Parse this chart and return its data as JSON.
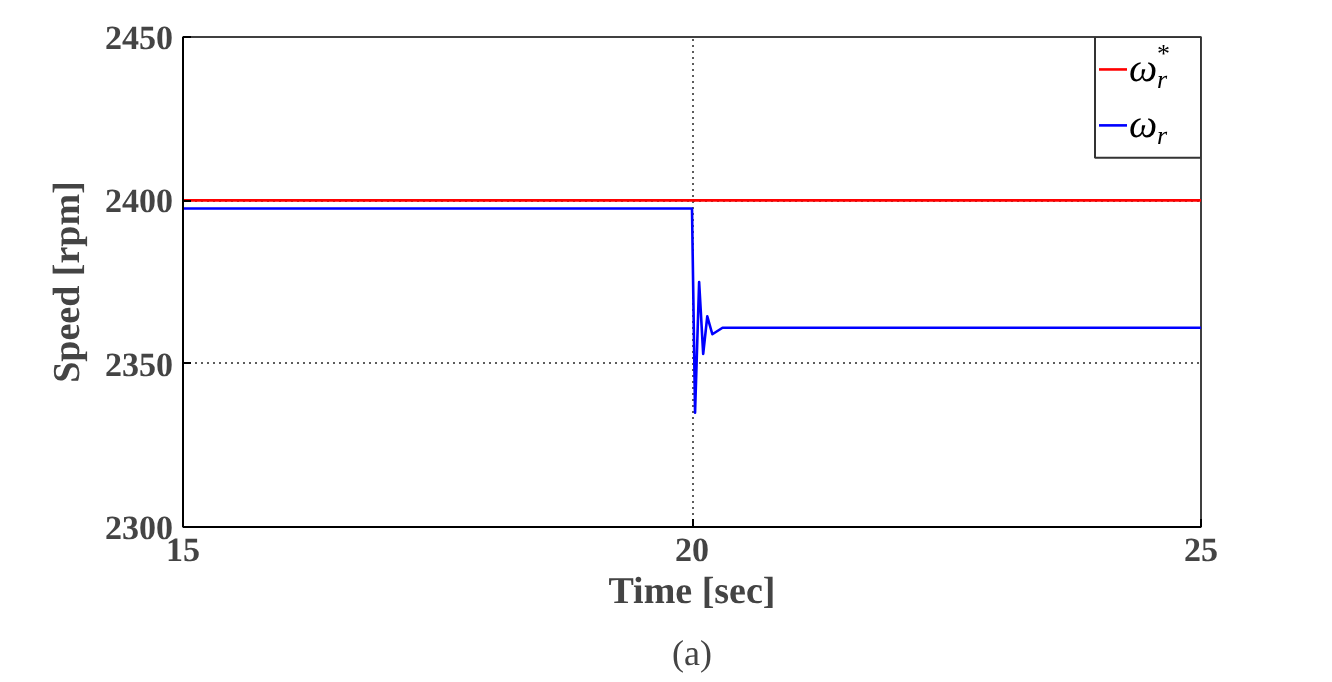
{
  "chart_data": {
    "type": "line",
    "xlabel": "Time [sec]",
    "ylabel": "Speed [rpm]",
    "annotations": [
      "(a)"
    ],
    "xlim": [
      15,
      25
    ],
    "ylim": [
      2300,
      2450
    ],
    "xticks": [
      15,
      20,
      25
    ],
    "yticks": [
      2300,
      2350,
      2400,
      2450
    ],
    "grid": true,
    "legend": "top right",
    "line_style": "solid",
    "series": [
      {
        "name": "ω$_{r}$$^{*}$",
        "color": "#ff0000",
        "x": [
          15,
          25
        ],
        "values": [
          2400,
          2400
        ]
      },
      {
        "name": "ω$_{r}$",
        "color": "#0000ff",
        "x": [
          15,
          20.0,
          20.03,
          20.07,
          20.11,
          20.15,
          20.2,
          20.3,
          25
        ],
        "values": [
          2397.5,
          2397.5,
          2335,
          2375,
          2353,
          2364.5,
          2359,
          2361,
          2361
        ]
      }
    ]
  }
}
